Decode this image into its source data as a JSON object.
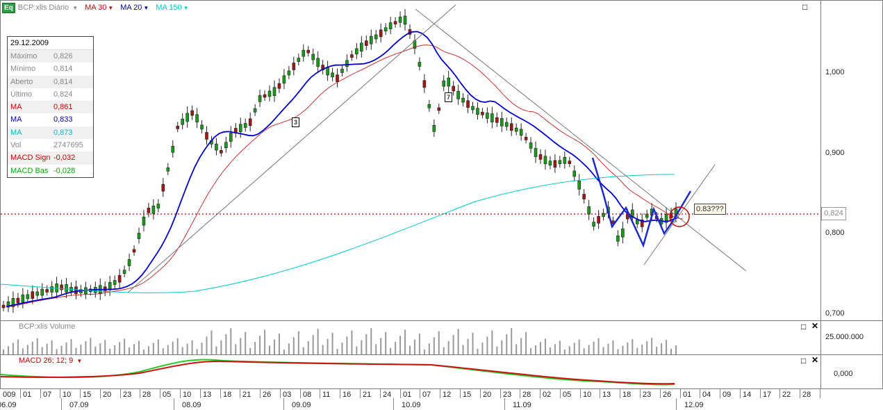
{
  "toolbar": {
    "logo": "Eq",
    "symbol": "BCP:xlis Diário",
    "ma30": {
      "label": "MA 30",
      "color": "#cc0000"
    },
    "ma20": {
      "label": "MA 20",
      "color": "#0000cc"
    },
    "ma150": {
      "label": "MA 150",
      "color": "#00cccc"
    }
  },
  "info": {
    "date": "29.12.2009",
    "rows": [
      {
        "k": "Máximo",
        "v": "0,826",
        "color": "#888888"
      },
      {
        "k": "Mínimo",
        "v": "0,814",
        "color": "#888888"
      },
      {
        "k": "Aberto",
        "v": "0,814",
        "color": "#888888"
      },
      {
        "k": "Último",
        "v": "0,824",
        "color": "#888888"
      },
      {
        "k": "MA",
        "v": "0,861",
        "color": "#cc0000"
      },
      {
        "k": "MA",
        "v": "0,833",
        "color": "#000099"
      },
      {
        "k": "MA",
        "v": "0,873",
        "color": "#00bbcc"
      },
      {
        "k": "Vol",
        "v": "2747695",
        "color": "#888888"
      },
      {
        "k": "MACD Sign",
        "v": "-0,032",
        "color": "#cc0000"
      },
      {
        "k": "MACD Bas",
        "v": "-0,028",
        "color": "#00aa00"
      }
    ]
  },
  "price_axis": [
    "1,000",
    "0,900",
    "0,800",
    "0,700"
  ],
  "last_price": "0,824",
  "annotation": "0.83???",
  "markers": [
    "3",
    "7"
  ],
  "volume_panel": {
    "title": "BCP:xlis Volume",
    "axis": "25.000.000"
  },
  "macd_panel": {
    "title": "MACD 26; 12; 9",
    "axis": "0,000"
  },
  "x_axis": {
    "days": [
      "009",
      "01",
      "07",
      "10",
      "15",
      "20",
      "23",
      "28",
      "05",
      "10",
      "13",
      "18",
      "21",
      "26",
      "03",
      "08",
      "11",
      "16",
      "21",
      "24",
      "01",
      "07",
      "12",
      "15",
      "20",
      "23",
      "28",
      "02",
      "05",
      "10",
      "13",
      "18",
      "23",
      "26",
      "01",
      "04",
      "09",
      "14",
      "17",
      "22",
      "28"
    ],
    "months": [
      "06.09",
      "07.09",
      "08.09",
      "09.09",
      "10.09",
      "11.09",
      "12.09"
    ]
  }
}
